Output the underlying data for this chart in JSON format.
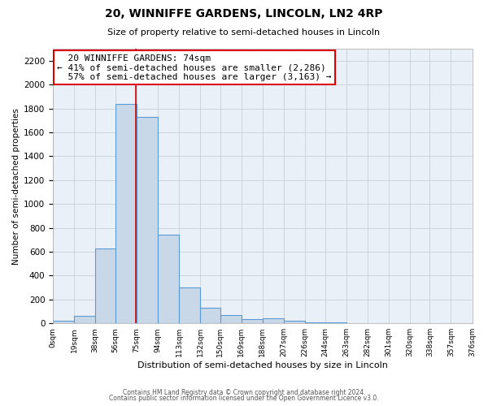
{
  "title": "20, WINNIFFE GARDENS, LINCOLN, LN2 4RP",
  "subtitle": "Size of property relative to semi-detached houses in Lincoln",
  "xlabel": "Distribution of semi-detached houses by size in Lincoln",
  "ylabel": "Number of semi-detached properties",
  "bar_color": "#c8d8e8",
  "bar_edge_color": "#5b9bd5",
  "property_size": 74,
  "vline_color": "#cc0000",
  "annotation_line1": "  20 WINNIFFE GARDENS: 74sqm",
  "annotation_line2": "← 41% of semi-detached houses are smaller (2,286)",
  "annotation_line3": "  57% of semi-detached houses are larger (3,163) →",
  "footer_line1": "Contains HM Land Registry data © Crown copyright and database right 2024.",
  "footer_line2": "Contains public sector information licensed under the Open Government Licence v3.0.",
  "bin_edges": [
    0,
    19,
    38,
    56,
    75,
    94,
    113,
    132,
    150,
    169,
    188,
    207,
    226,
    244,
    263,
    282,
    301,
    320,
    338,
    357,
    376
  ],
  "bin_counts": [
    20,
    60,
    625,
    1840,
    1730,
    740,
    300,
    130,
    70,
    35,
    40,
    20,
    5,
    10,
    0,
    0,
    0,
    0,
    0,
    0
  ],
  "tick_labels": [
    "0sqm",
    "19sqm",
    "38sqm",
    "56sqm",
    "75sqm",
    "94sqm",
    "113sqm",
    "132sqm",
    "150sqm",
    "169sqm",
    "188sqm",
    "207sqm",
    "226sqm",
    "244sqm",
    "263sqm",
    "282sqm",
    "301sqm",
    "320sqm",
    "338sqm",
    "357sqm",
    "376sqm"
  ],
  "ylim": [
    0,
    2300
  ],
  "yticks": [
    0,
    200,
    400,
    600,
    800,
    1000,
    1200,
    1400,
    1600,
    1800,
    2000,
    2200
  ],
  "background_color": "#ffffff",
  "plot_bg_color": "#eaf0f8",
  "grid_color": "#c8cfd8",
  "annotation_box_color": "#dd0000",
  "title_fontsize": 10,
  "subtitle_fontsize": 8
}
